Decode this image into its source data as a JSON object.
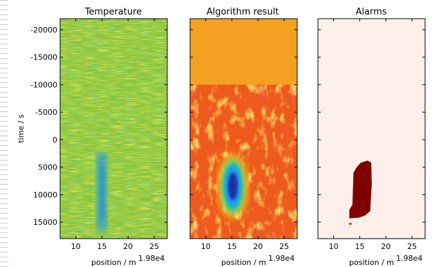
{
  "chart_data": [
    {
      "type": "heatmap",
      "title": "Temperature",
      "xlabel": "position / m",
      "x_offset_label": "1.98e4",
      "ylabel": "time / s",
      "xlim": [
        7,
        27.5
      ],
      "ylim": [
        18000,
        -22000
      ],
      "xticks": [
        10,
        15,
        20,
        25
      ],
      "yticks": [
        -20000,
        -15000,
        -10000,
        -5000,
        0,
        5000,
        10000,
        15000
      ],
      "colormap": "jet",
      "base_color": "#86c23c",
      "features": [
        {
          "kind": "cool-band",
          "x_center": 15,
          "x_width": 2,
          "y_from": 2500,
          "y_to": 16500,
          "color": "#2ea0c8"
        }
      ]
    },
    {
      "type": "heatmap",
      "title": "Algorithm result",
      "xlabel": "position / m",
      "x_offset_label": "1.98e4",
      "xlim": [
        7,
        27.5
      ],
      "ylim": [
        18000,
        -22000
      ],
      "xticks": [
        10,
        15,
        20,
        25
      ],
      "colormap": "jet",
      "no_data_region": {
        "y_from": -22000,
        "y_to": -10000,
        "color": "#f4a023"
      },
      "features": [
        {
          "kind": "low-blob",
          "x_center": 15.2,
          "y_center": 8500,
          "x_radius": 1.6,
          "y_radius": 4200,
          "color": "#1d2fa8"
        }
      ]
    },
    {
      "type": "heatmap",
      "title": "Alarms",
      "xlabel": "position / m",
      "x_offset_label": "1.98e4",
      "xlim": [
        7,
        27.5
      ],
      "ylim": [
        18000,
        -22000
      ],
      "xticks": [
        10,
        15,
        20,
        25
      ],
      "background_color": "#fcefe9",
      "alarm_color": "#7f0000",
      "alarm_region": [
        [
          16.5,
          3800
        ],
        [
          17.2,
          4200
        ],
        [
          17.3,
          8000
        ],
        [
          17,
          13000
        ],
        [
          16,
          13800
        ],
        [
          14.8,
          14200
        ],
        [
          13,
          14300
        ],
        [
          13,
          12800
        ],
        [
          13.6,
          11800
        ],
        [
          13.8,
          6000
        ],
        [
          14.4,
          5000
        ],
        [
          15.2,
          4200
        ]
      ],
      "alarm_spot": {
        "x": 13.2,
        "y": 15300
      }
    }
  ]
}
